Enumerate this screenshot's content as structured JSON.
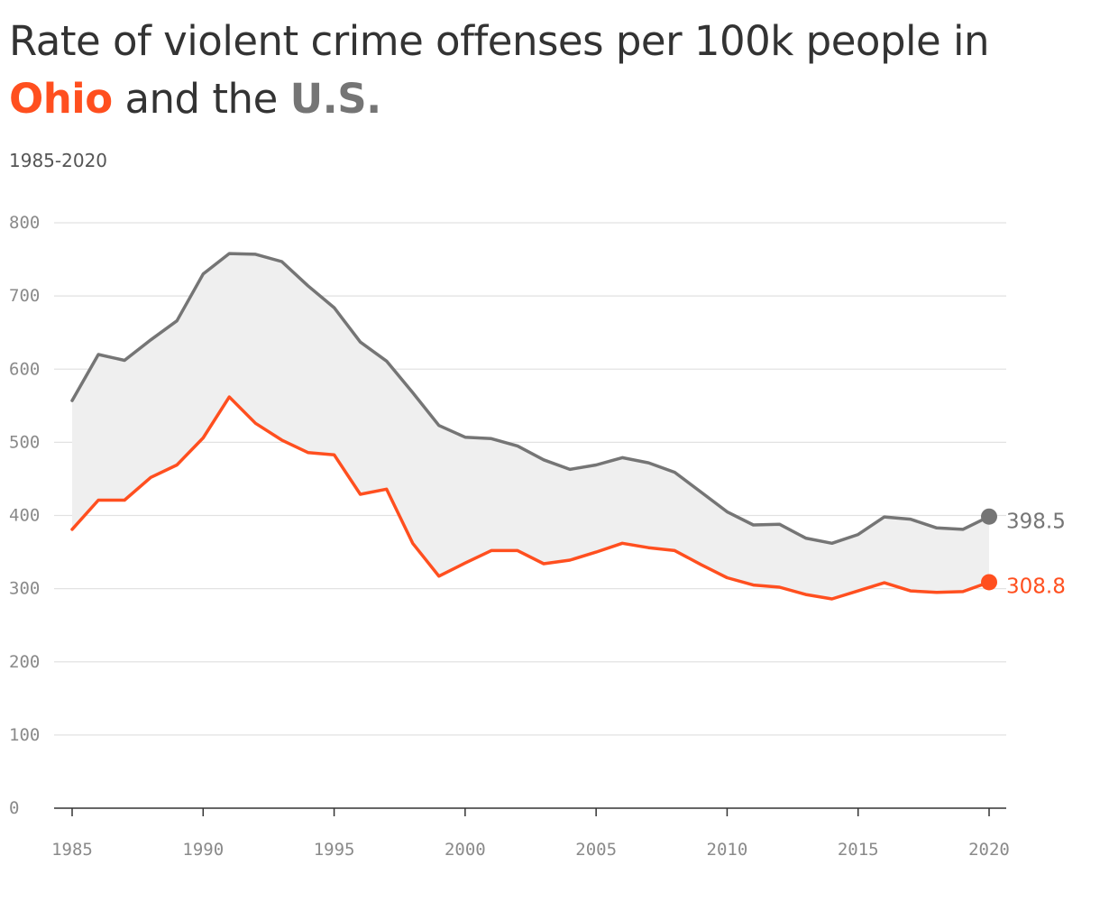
{
  "header": {
    "title_prefix": "Rate of violent crime offenses per 100k people in",
    "title_ohio": "Ohio",
    "title_and": "and the",
    "title_us": "U.S.",
    "subtitle": "1985-2020"
  },
  "colors": {
    "ohio": "#ff4f1f",
    "us": "#757575",
    "band": "#efefef",
    "grid": "#e2e2e2",
    "axis": "#333333"
  },
  "chart_data": {
    "type": "line",
    "title": "Rate of violent crime offenses per 100k people in Ohio and the U.S.",
    "subtitle": "1985-2020",
    "x": [
      1985,
      1986,
      1987,
      1988,
      1989,
      1990,
      1991,
      1992,
      1993,
      1994,
      1995,
      1996,
      1997,
      1998,
      1999,
      2000,
      2001,
      2002,
      2003,
      2004,
      2005,
      2006,
      2007,
      2008,
      2009,
      2010,
      2011,
      2012,
      2013,
      2014,
      2015,
      2016,
      2017,
      2018,
      2019,
      2020
    ],
    "series": [
      {
        "name": "U.S.",
        "values": [
          557,
          620,
          612,
          640,
          666,
          730,
          758,
          757,
          747,
          714,
          684,
          637,
          611,
          568,
          523,
          507,
          505,
          495,
          476,
          463,
          469,
          479,
          472,
          459,
          432,
          405,
          387,
          388,
          369,
          362,
          374,
          398,
          395,
          383,
          381,
          398.5
        ]
      },
      {
        "name": "Ohio",
        "values": [
          381,
          421,
          421,
          452,
          469,
          506,
          562,
          526,
          503,
          486,
          483,
          429,
          436,
          362,
          317,
          335,
          352,
          352,
          334,
          339,
          350,
          362,
          356,
          352,
          333,
          315,
          305,
          302,
          292,
          286,
          297,
          308,
          297,
          295,
          296,
          308.8
        ]
      }
    ],
    "end_labels": {
      "us": "398.5",
      "ohio": "308.8"
    },
    "ylim": [
      0,
      800
    ],
    "xlim": [
      1985,
      2020
    ],
    "y_ticks": [
      "0",
      "100",
      "200",
      "300",
      "400",
      "500",
      "600",
      "700",
      "800"
    ],
    "x_ticks": [
      "1985",
      "1990",
      "1995",
      "2000",
      "2005",
      "2010",
      "2015",
      "2020"
    ],
    "grid": true,
    "shaded_between_series": true
  }
}
